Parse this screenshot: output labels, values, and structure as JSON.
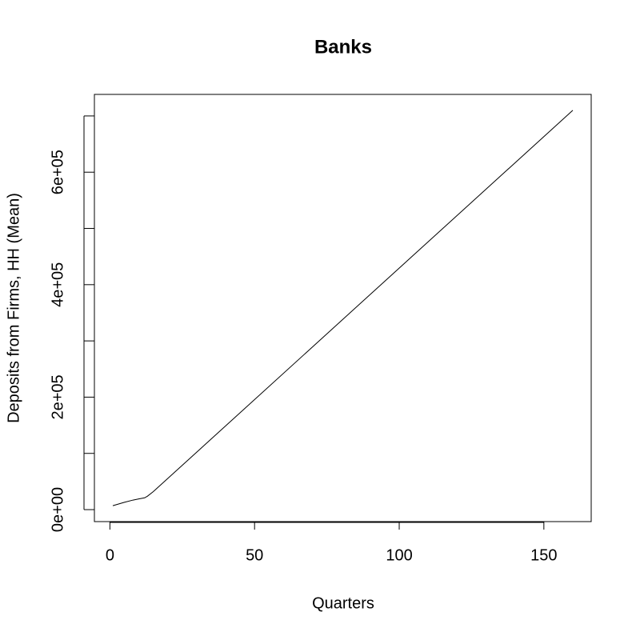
{
  "chart_data": {
    "type": "line",
    "title": "Banks",
    "x_label": "Quarters",
    "y_label": "Deposits from Firms, HH (Mean)",
    "x": [
      1,
      3,
      5,
      8,
      10,
      12,
      13,
      15,
      160
    ],
    "series": [
      {
        "color": "#000000",
        "values": [
          7000,
          10000,
          13000,
          17000,
          19000,
          21000,
          24000,
          32000,
          710000
        ]
      }
    ],
    "xlim": [
      -5.36,
      166.36
    ],
    "xticks": [
      0,
      50,
      100,
      150
    ],
    "ylim": [
      -21300,
      738300
    ],
    "yticks": [
      {
        "value": 0,
        "label": "0e+00"
      },
      {
        "value": 200000,
        "label": "2e+05"
      },
      {
        "value": 400000,
        "label": "4e+05"
      },
      {
        "value": 600000,
        "label": "6e+05"
      }
    ],
    "minor_yticks": [
      100000,
      300000,
      500000,
      700000
    ],
    "grid": false
  }
}
